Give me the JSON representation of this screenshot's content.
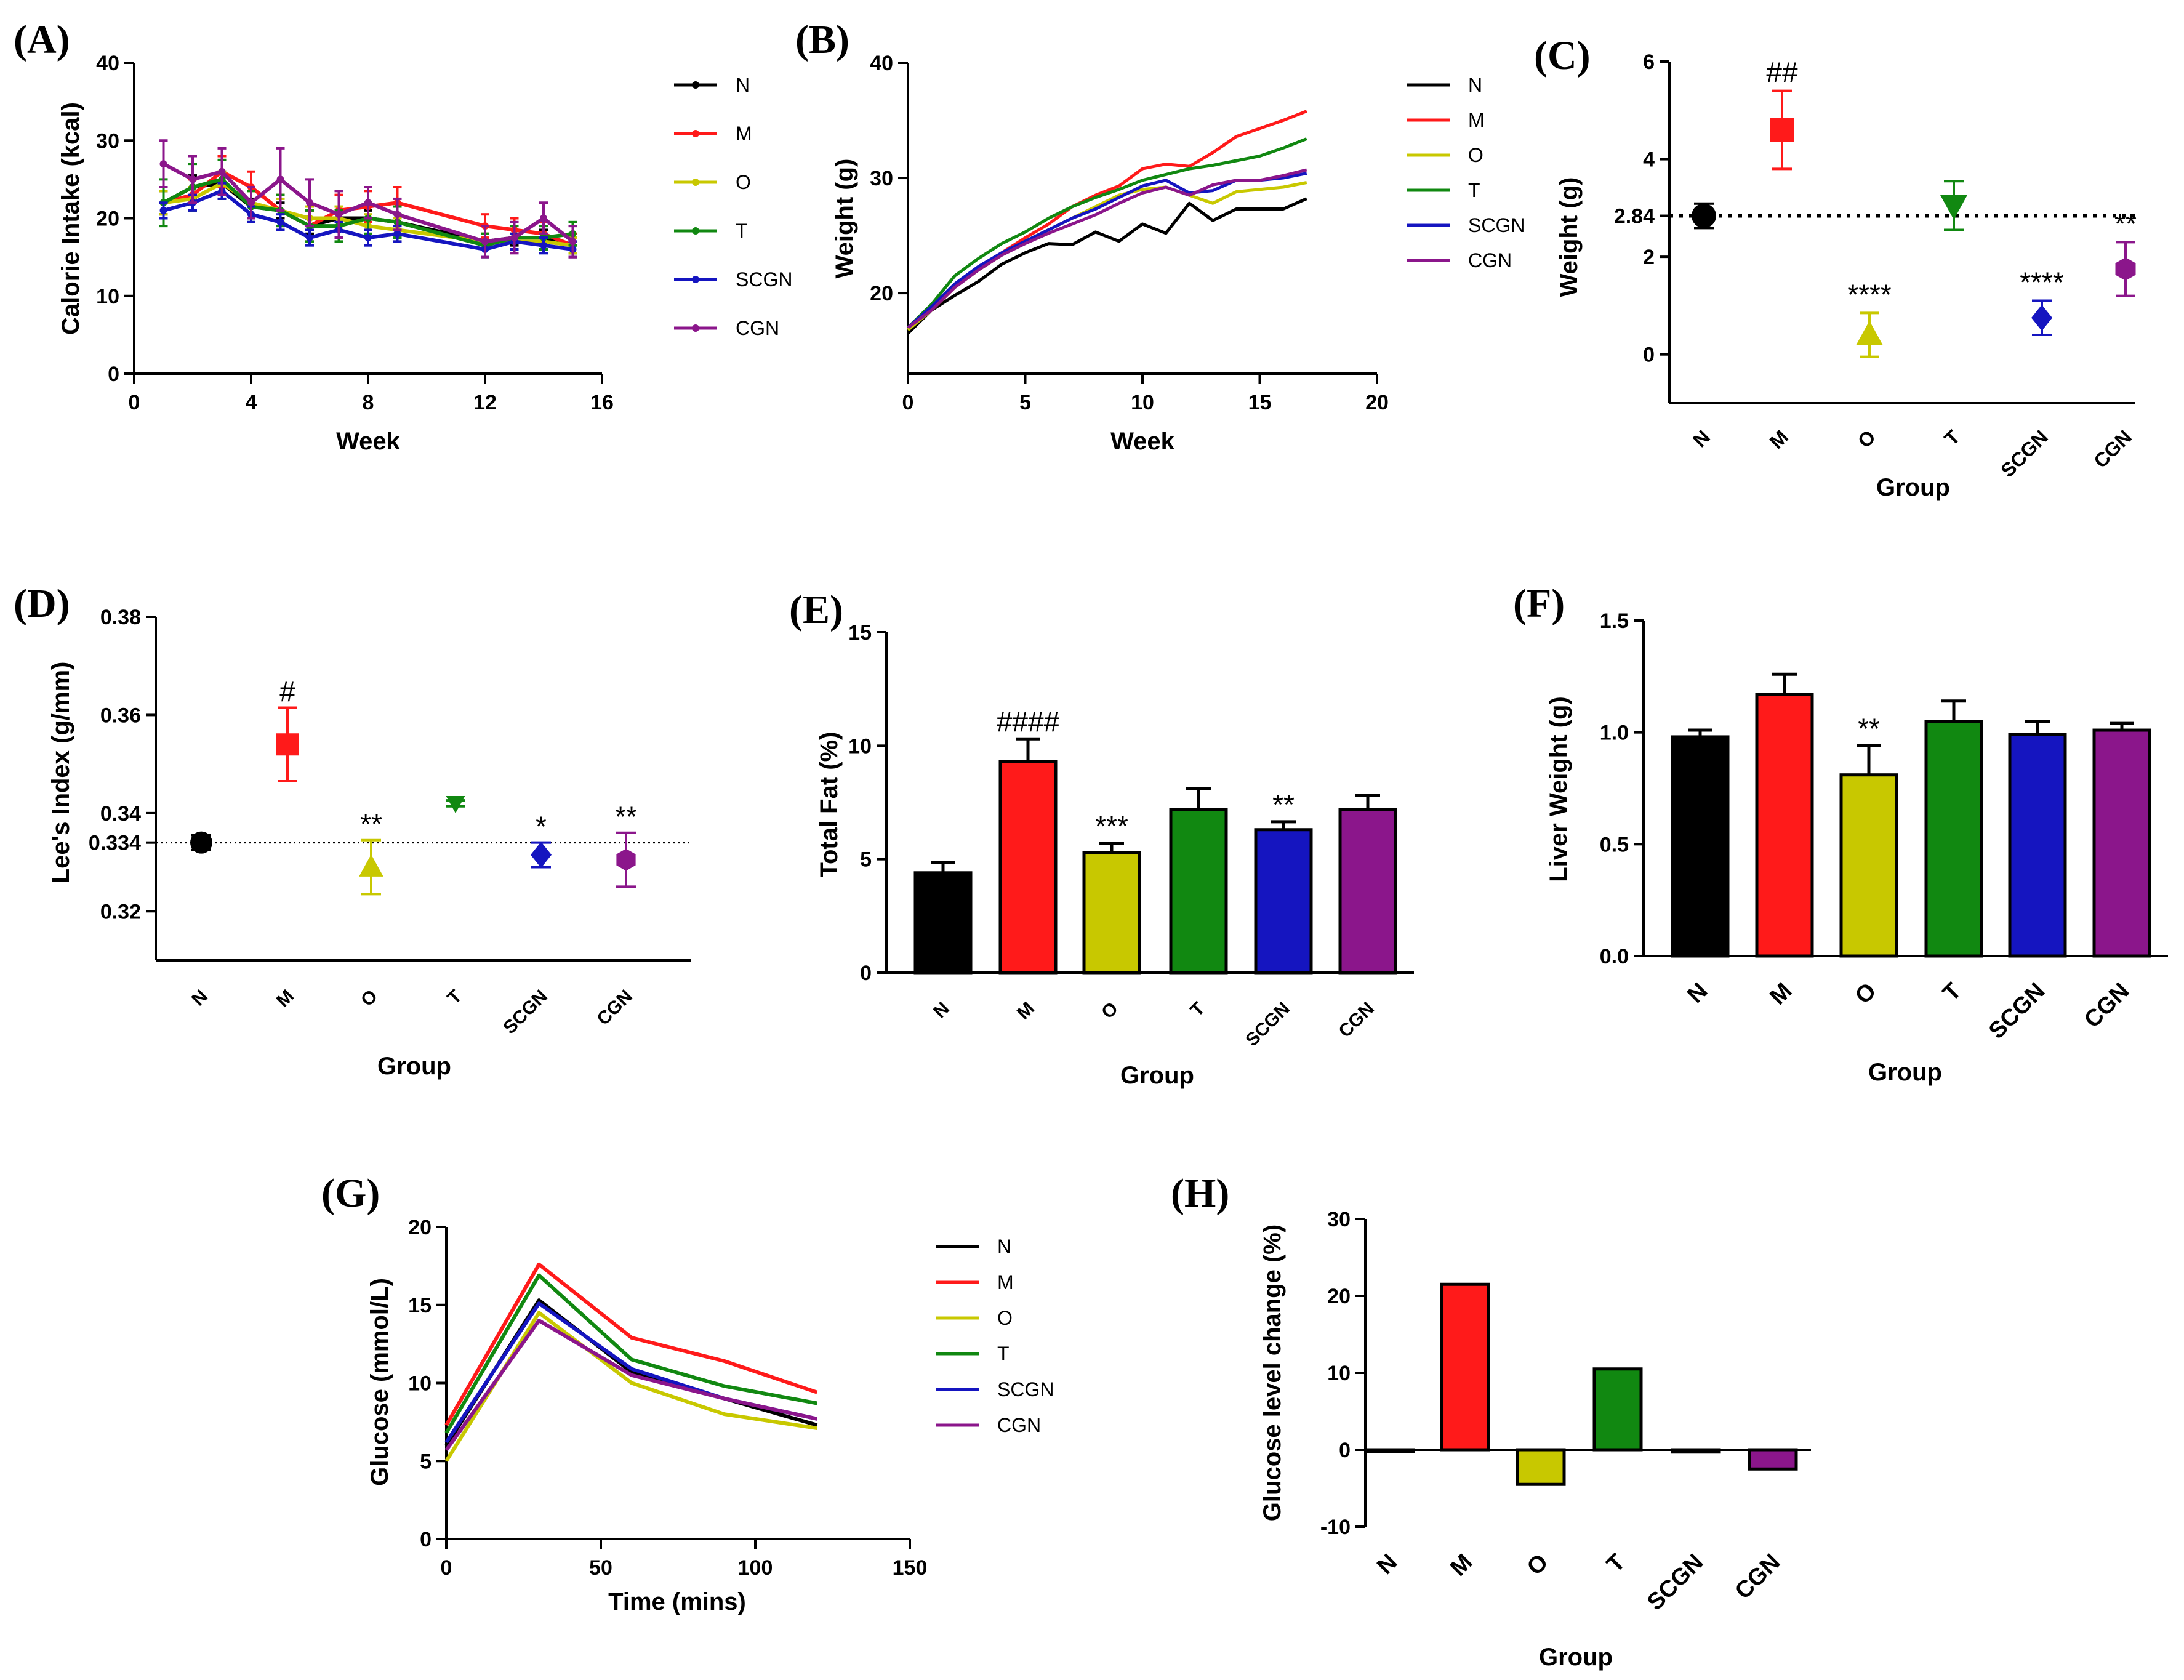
{
  "colors": {
    "N": "#000000",
    "M": "#ff1a1a",
    "O": "#c8c800",
    "T": "#118811",
    "SCGN": "#1515c0",
    "CGN": "#8b168b"
  },
  "chart_data": [
    {
      "panel": "A",
      "label": "(A)",
      "type": "line",
      "xlabel": "Week",
      "ylabel": "Calorie Intake (kcal)",
      "xlim": [
        0,
        16
      ],
      "ylim": [
        0,
        40
      ],
      "xticks": [
        "0",
        "4",
        "8",
        "12",
        "16"
      ],
      "yticks": [
        "0",
        "10",
        "20",
        "30",
        "40"
      ],
      "x": [
        1,
        2,
        3,
        4,
        5,
        6,
        7,
        8,
        9,
        12,
        13,
        14,
        15
      ],
      "legend": [
        "N",
        "M",
        "O",
        "T",
        "SCGN",
        "CGN"
      ],
      "series": [
        {
          "name": "N",
          "values": [
            22,
            24,
            24.5,
            21.5,
            21,
            19,
            20,
            20,
            19.5,
            17,
            17.5,
            17.5,
            16.5
          ],
          "err": [
            1.5,
            1.5,
            1.5,
            1,
            1,
            1,
            1,
            1,
            1,
            1,
            1,
            1,
            1
          ]
        },
        {
          "name": "M",
          "values": [
            22,
            23,
            26,
            24,
            21,
            19,
            21,
            21.5,
            22,
            19,
            18.5,
            18,
            16.5
          ],
          "err": [
            2,
            2,
            2,
            2,
            2,
            2,
            2,
            2,
            2,
            1.5,
            1.5,
            1.5,
            1.5
          ]
        },
        {
          "name": "O",
          "values": [
            22,
            22.5,
            24.5,
            22,
            21,
            20,
            20,
            19,
            18.5,
            17,
            17,
            17,
            16.5
          ],
          "err": [
            1.5,
            1.5,
            1.5,
            1.5,
            1.5,
            1.5,
            1.5,
            1.5,
            1.5,
            1,
            1,
            1,
            1
          ]
        },
        {
          "name": "T",
          "values": [
            22,
            24,
            25,
            21.5,
            21,
            19,
            19,
            20,
            19.5,
            16.5,
            17.5,
            17.5,
            18
          ],
          "err": [
            3,
            3,
            2.5,
            2,
            2,
            2,
            2,
            2,
            2,
            1.5,
            1.5,
            1.5,
            1.5
          ]
        },
        {
          "name": "SCGN",
          "values": [
            21,
            22,
            23.5,
            20.5,
            19.5,
            17.5,
            18.5,
            17.5,
            18,
            16,
            17,
            16.5,
            16
          ],
          "err": [
            1,
            1,
            1,
            1,
            1,
            1,
            1,
            1,
            1,
            1,
            1,
            1,
            1
          ]
        },
        {
          "name": "CGN",
          "values": [
            27,
            25,
            26,
            22,
            25,
            22,
            20.5,
            22,
            20.5,
            17,
            17.5,
            20,
            17
          ],
          "err": [
            3,
            3,
            3,
            2,
            4,
            3,
            3,
            2,
            2,
            2,
            2,
            2,
            2
          ]
        }
      ]
    },
    {
      "panel": "B",
      "label": "(B)",
      "type": "line",
      "xlabel": "Week",
      "ylabel": "Weight  (g)",
      "xlim": [
        0,
        20
      ],
      "ylim": [
        13,
        40
      ],
      "xticks": [
        "0",
        "5",
        "10",
        "15",
        "20"
      ],
      "yticks": [
        "20",
        "30",
        "40"
      ],
      "x": [
        0,
        1,
        2,
        3,
        4,
        5,
        6,
        7,
        8,
        9,
        10,
        11,
        12,
        13,
        14,
        15,
        16,
        17
      ],
      "legend": [
        "N",
        "M",
        "O",
        "T",
        "SCGN",
        "CGN"
      ],
      "series": [
        {
          "name": "N",
          "values": [
            16.5,
            18.5,
            19.8,
            21,
            22.5,
            23.5,
            24.3,
            24.2,
            25.3,
            24.5,
            26,
            25.2,
            27.8,
            26.3,
            27.3,
            27.3,
            27.3,
            28.2
          ]
        },
        {
          "name": "M",
          "values": [
            17,
            18.5,
            20.5,
            22.2,
            23.5,
            24.8,
            26,
            27.5,
            28.5,
            29.3,
            30.8,
            31.2,
            31,
            32.2,
            33.6,
            34.3,
            35,
            35.8
          ]
        },
        {
          "name": "O",
          "values": [
            16.8,
            18.5,
            20.5,
            22,
            23.3,
            24.5,
            25.5,
            26.5,
            27.5,
            28.5,
            29,
            29.2,
            28.5,
            27.8,
            28.8,
            29,
            29.2,
            29.6
          ]
        },
        {
          "name": "T",
          "values": [
            17,
            19,
            21.5,
            23,
            24.3,
            25.3,
            26.5,
            27.5,
            28.3,
            29,
            29.8,
            30.3,
            30.8,
            31.1,
            31.5,
            31.9,
            32.6,
            33.4
          ]
        },
        {
          "name": "SCGN",
          "values": [
            17,
            18.8,
            20.8,
            22.3,
            23.5,
            24.5,
            25.5,
            26.5,
            27.3,
            28.3,
            29.3,
            29.8,
            28.7,
            28.9,
            29.8,
            29.8,
            30,
            30.4
          ]
        },
        {
          "name": "CGN",
          "values": [
            17,
            18.5,
            20.5,
            22,
            23.3,
            24.3,
            25.2,
            26,
            26.8,
            27.8,
            28.7,
            29.2,
            28.5,
            29.4,
            29.8,
            29.8,
            30.2,
            30.7
          ]
        }
      ]
    },
    {
      "panel": "C",
      "label": "(C)",
      "type": "scatter",
      "xlabel": "Group",
      "ylabel": "Weight  (g)",
      "ylim": [
        -1,
        6
      ],
      "yticks": [
        "0",
        "2",
        "4",
        "6"
      ],
      "refline": {
        "value": 2.84,
        "label": "2.84"
      },
      "categories": [
        "N",
        "M",
        "O",
        "T",
        "SCGN",
        "CGN"
      ],
      "values": [
        2.84,
        4.6,
        0.4,
        3.05,
        0.75,
        1.75
      ],
      "err": [
        0.25,
        0.8,
        0.45,
        0.5,
        0.35,
        0.55
      ],
      "annotations": [
        "",
        "##",
        "****",
        "",
        "****",
        "**"
      ]
    },
    {
      "panel": "D",
      "label": "(D)",
      "type": "scatter",
      "xlabel": "Group",
      "ylabel": "Lee's Index (g/mm)",
      "ylim": [
        0.31,
        0.38
      ],
      "yticks": [
        "0.32",
        "0.334",
        "0.34",
        "0.36",
        "0.38"
      ],
      "refline": {
        "value": 0.334
      },
      "categories": [
        "N",
        "M",
        "O",
        "T",
        "SCGN",
        "CGN"
      ],
      "values": [
        0.334,
        0.354,
        0.329,
        0.342,
        0.3315,
        0.3305
      ],
      "err": [
        0.0015,
        0.0075,
        0.0055,
        0.0006,
        0.0025,
        0.0055
      ],
      "annotations": [
        "",
        "#",
        "**",
        "",
        "*",
        "**"
      ]
    },
    {
      "panel": "E",
      "label": "(E)",
      "type": "bar",
      "xlabel": "Group",
      "ylabel": "Total Fat (%)",
      "ylim": [
        0,
        15
      ],
      "yticks": [
        "0",
        "5",
        "10",
        "15"
      ],
      "categories": [
        "N",
        "M",
        "O",
        "T",
        "SCGN",
        "CGN"
      ],
      "values": [
        4.4,
        9.3,
        5.3,
        7.2,
        6.3,
        7.2
      ],
      "err": [
        0.45,
        1.0,
        0.4,
        0.9,
        0.35,
        0.6
      ],
      "annotations": [
        "",
        "####",
        "***",
        "",
        "**",
        ""
      ]
    },
    {
      "panel": "F",
      "label": "(F)",
      "type": "bar",
      "xlabel": "Group",
      "ylabel": "Liver Weight  (g)",
      "ylim": [
        0,
        1.5
      ],
      "yticks": [
        "0.0",
        "0.5",
        "1.0",
        "1.5"
      ],
      "categories": [
        "N",
        "M",
        "O",
        "T",
        "SCGN",
        "CGN"
      ],
      "values": [
        0.98,
        1.17,
        0.81,
        1.05,
        0.99,
        1.01
      ],
      "err": [
        0.03,
        0.09,
        0.13,
        0.09,
        0.06,
        0.03
      ],
      "annotations": [
        "",
        "",
        "**",
        "",
        "",
        ""
      ]
    },
    {
      "panel": "G",
      "label": "(G)",
      "type": "line",
      "xlabel": "Time (mins)",
      "ylabel": "Glucose (mmol/L)",
      "xlim": [
        0,
        150
      ],
      "ylim": [
        0,
        20
      ],
      "xticks": [
        "0",
        "50",
        "100",
        "150"
      ],
      "yticks": [
        "0",
        "5",
        "10",
        "15",
        "20"
      ],
      "x": [
        0,
        30,
        60,
        90,
        120
      ],
      "legend": [
        "N",
        "M",
        "O",
        "T",
        "SCGN",
        "CGN"
      ],
      "series": [
        {
          "name": "N",
          "values": [
            6.0,
            15.3,
            10.7,
            9.0,
            7.3
          ]
        },
        {
          "name": "M",
          "values": [
            7.3,
            17.6,
            12.9,
            11.4,
            9.4
          ]
        },
        {
          "name": "O",
          "values": [
            5.0,
            14.5,
            10.0,
            8.0,
            7.1
          ]
        },
        {
          "name": "T",
          "values": [
            6.8,
            16.9,
            11.5,
            9.8,
            8.7
          ]
        },
        {
          "name": "SCGN",
          "values": [
            6.2,
            15.1,
            10.9,
            9.0,
            7.7
          ]
        },
        {
          "name": "CGN",
          "values": [
            5.7,
            14.0,
            10.5,
            9.0,
            7.7
          ]
        }
      ]
    },
    {
      "panel": "H",
      "label": "(H)",
      "type": "bar",
      "xlabel": "Group",
      "ylabel": "Glucose level change (%)",
      "ylim": [
        -10,
        30
      ],
      "yticks": [
        "-10",
        "0",
        "10",
        "20",
        "30"
      ],
      "categories": [
        "N",
        "M",
        "O",
        "T",
        "SCGN",
        "CGN"
      ],
      "values": [
        0,
        21.5,
        -4.5,
        10.5,
        -0.3,
        -2.5
      ]
    }
  ]
}
